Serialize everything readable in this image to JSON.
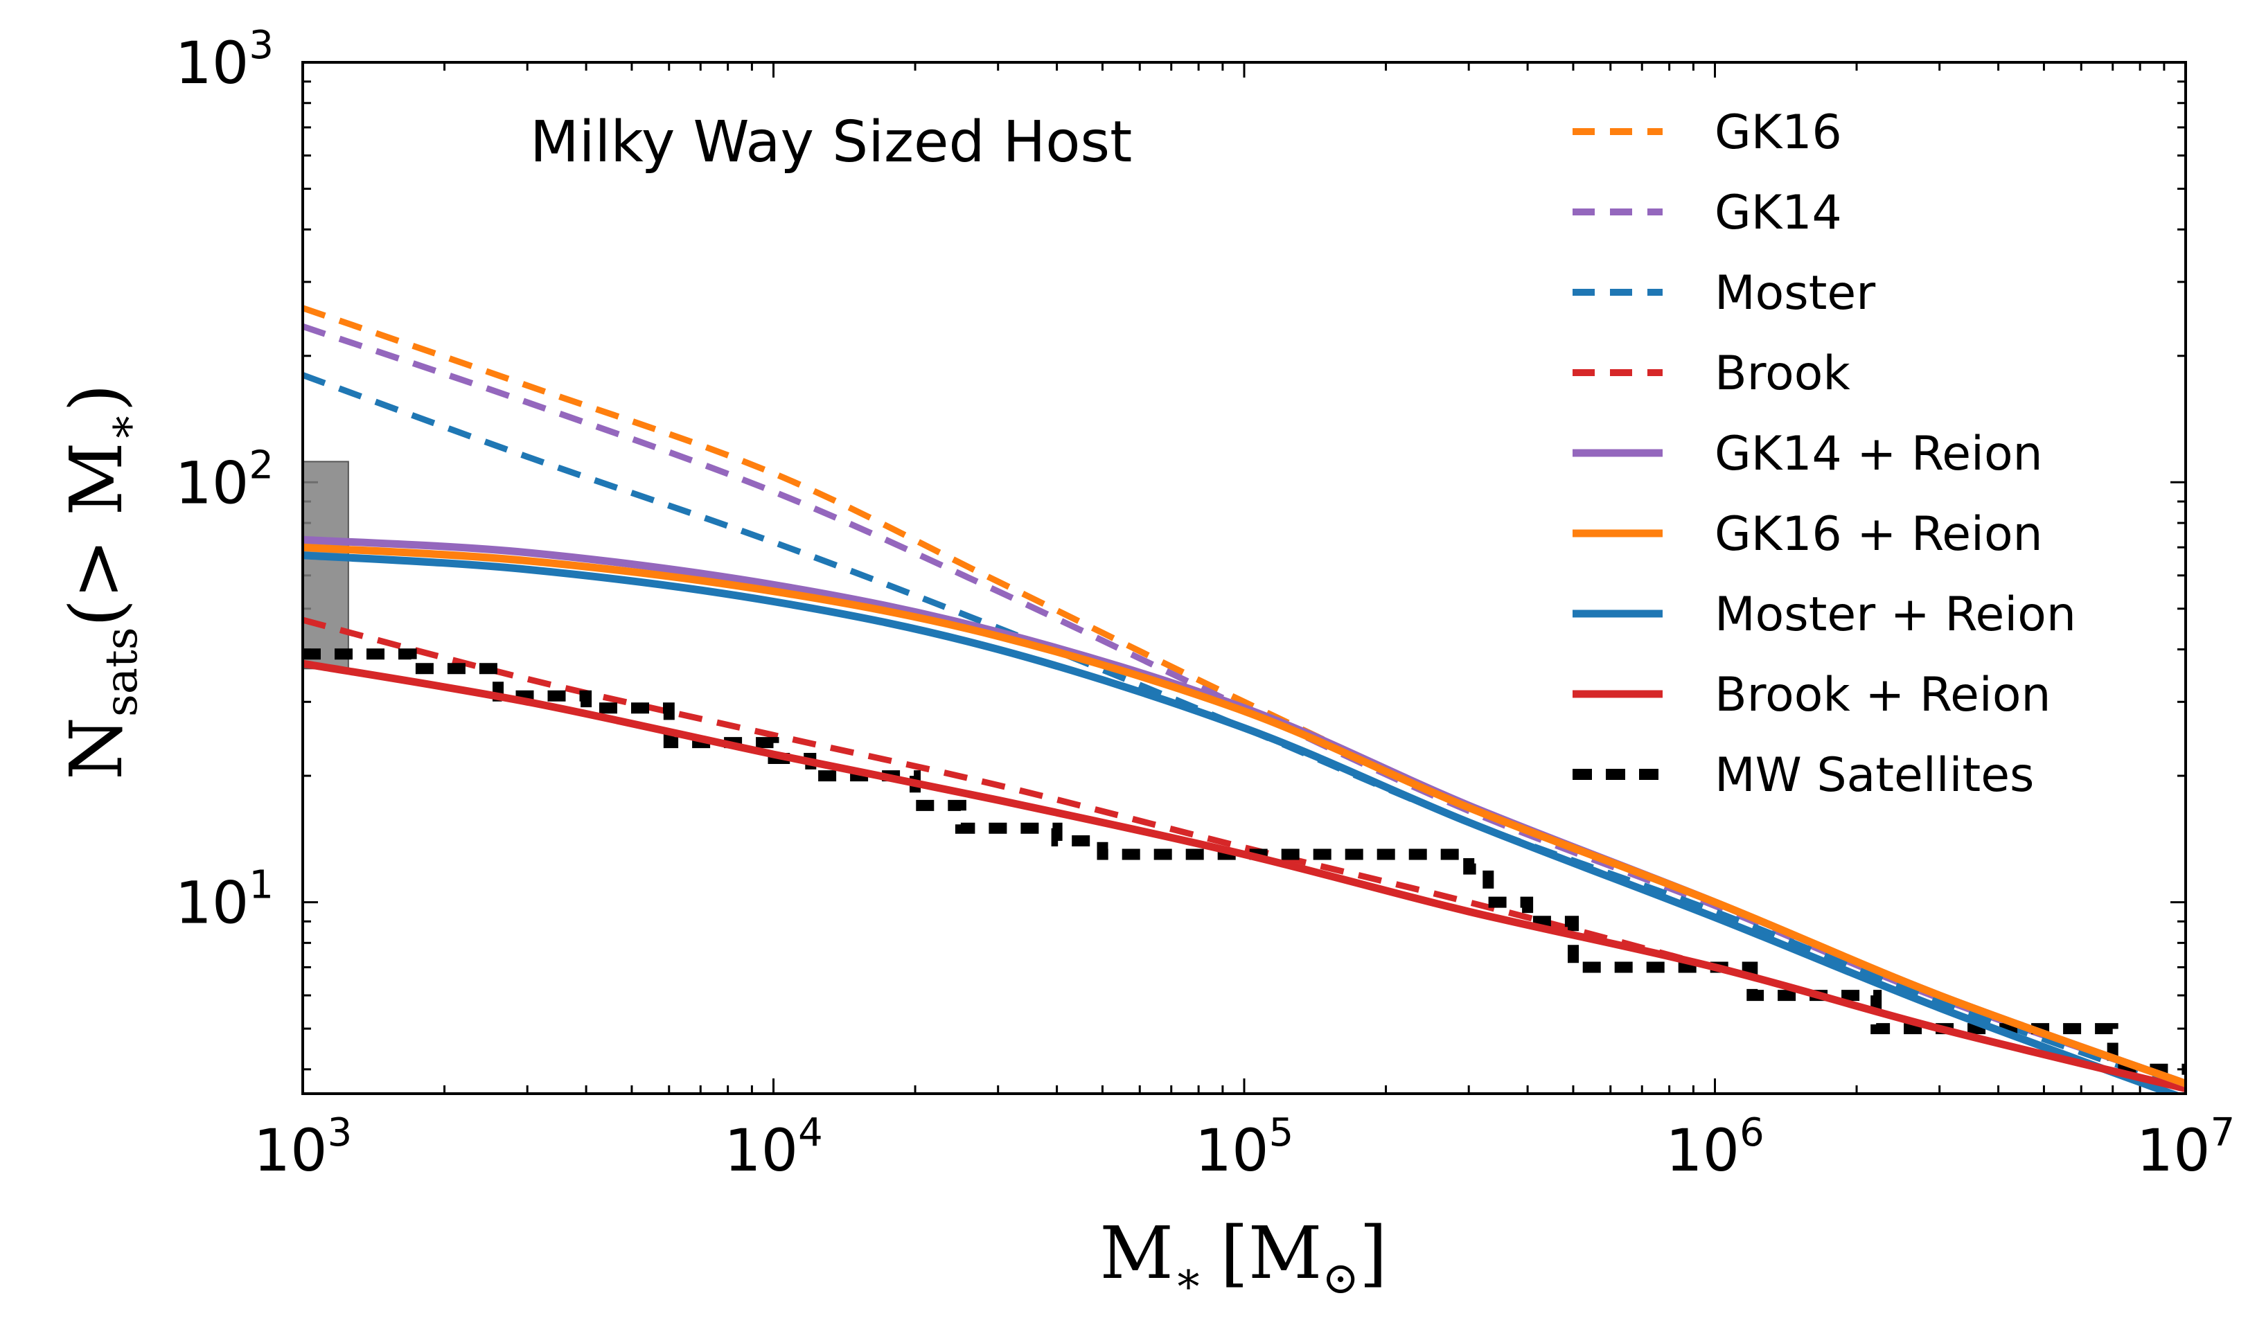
{
  "chart_data": {
    "type": "line",
    "title": "Milky Way Sized Host",
    "xscale": "log",
    "yscale": "log",
    "xlim": [
      1000,
      10000000
    ],
    "ylim": [
      3.5,
      1000
    ],
    "xlabel": {
      "main": "M",
      "sub": "∗",
      "unit_open": "[M",
      "unit_sub": "⊙",
      "unit_close": "]"
    },
    "ylabel": {
      "main": "N",
      "sub": "sats",
      "rest": "(> M",
      "rest_sub": "∗",
      "close": ")"
    },
    "xticks": [
      {
        "value": 1000,
        "base": "10",
        "exp": "3"
      },
      {
        "value": 10000,
        "base": "10",
        "exp": "4"
      },
      {
        "value": 100000,
        "base": "10",
        "exp": "5"
      },
      {
        "value": 1000000,
        "base": "10",
        "exp": "6"
      },
      {
        "value": 10000000,
        "base": "10",
        "exp": "7"
      }
    ],
    "yticks": [
      {
        "value": 10,
        "base": "10",
        "exp": "1"
      },
      {
        "value": 100,
        "base": "10",
        "exp": "2"
      },
      {
        "value": 1000,
        "base": "10",
        "exp": "3"
      }
    ],
    "legend_position": "top-right",
    "series": [
      {
        "name": "GK16",
        "style": "dashed",
        "color": "#ff7f0e",
        "x": [
          1000,
          3000,
          10000,
          30000,
          100000,
          300000,
          1000000,
          3000000,
          10000000
        ],
        "y": [
          260,
          170,
          105,
          58,
          30,
          17,
          10,
          6,
          3.7
        ]
      },
      {
        "name": "GK14",
        "style": "dashed",
        "color": "#9467bd",
        "x": [
          1000,
          3000,
          10000,
          30000,
          100000,
          300000,
          1000000,
          3000000,
          10000000
        ],
        "y": [
          235,
          155,
          95,
          55,
          29,
          16.5,
          9.8,
          5.9,
          3.7
        ]
      },
      {
        "name": "Moster",
        "style": "dashed",
        "color": "#1f77b4",
        "x": [
          1000,
          3000,
          10000,
          30000,
          100000,
          300000,
          1000000,
          3000000,
          10000000
        ],
        "y": [
          180,
          115,
          72,
          45,
          26,
          15.5,
          9.5,
          5.8,
          3.6
        ]
      },
      {
        "name": "Brook",
        "style": "dashed",
        "color": "#d62728",
        "x": [
          1000,
          3000,
          10000,
          30000,
          100000,
          300000,
          1000000,
          3000000,
          10000000
        ],
        "y": [
          47,
          34,
          25,
          19,
          13.5,
          10,
          7,
          5,
          3.6
        ]
      },
      {
        "name": "GK14 + Reion",
        "style": "solid",
        "color": "#9467bd",
        "x": [
          1000,
          3000,
          10000,
          30000,
          100000,
          300000,
          1000000,
          3000000,
          10000000
        ],
        "y": [
          73,
          68,
          57,
          44,
          29,
          17,
          10,
          6,
          3.7
        ]
      },
      {
        "name": "GK16 + Reion",
        "style": "solid",
        "color": "#ff7f0e",
        "x": [
          1000,
          3000,
          10000,
          30000,
          100000,
          300000,
          1000000,
          3000000,
          10000000
        ],
        "y": [
          70,
          65,
          55,
          43,
          28.5,
          16.8,
          10,
          6,
          3.7
        ]
      },
      {
        "name": "Moster + Reion",
        "style": "solid",
        "color": "#1f77b4",
        "x": [
          1000,
          3000,
          10000,
          30000,
          100000,
          300000,
          1000000,
          3000000,
          10000000
        ],
        "y": [
          67,
          62,
          52,
          40,
          26,
          15.5,
          9.2,
          5.6,
          3.4
        ]
      },
      {
        "name": "Brook + Reion",
        "style": "solid",
        "color": "#d62728",
        "x": [
          1000,
          3000,
          10000,
          30000,
          100000,
          300000,
          1000000,
          3000000,
          10000000
        ],
        "y": [
          37,
          30,
          22.5,
          17.5,
          13,
          9.5,
          7,
          5,
          3.6
        ]
      },
      {
        "name": "MW Satellites",
        "style": "dashed-thick",
        "color": "#000000",
        "x": [
          1000,
          1300,
          1700,
          2200,
          2600,
          3000,
          4000,
          5000,
          6000,
          8000,
          10000,
          12000,
          15000,
          20000,
          25000,
          30000,
          40000,
          50000,
          60000,
          75000,
          100000,
          130000,
          170000,
          220000,
          300000,
          330000,
          400000,
          480000,
          500000,
          600000,
          800000,
          1000000,
          1200000,
          1500000,
          2000000,
          2200000,
          3000000,
          4000000,
          5000000,
          6000000,
          7000000,
          8000000,
          10000000
        ],
        "y": [
          39,
          39,
          36,
          36,
          31,
          31,
          29,
          29,
          24,
          24,
          22,
          20,
          20,
          17,
          15,
          15,
          14,
          13,
          13,
          13,
          13,
          13,
          13,
          13,
          12,
          10,
          9,
          9,
          7,
          7,
          7,
          7,
          6,
          6,
          6,
          5,
          5,
          5,
          5,
          5,
          4,
          4,
          4
        ]
      }
    ],
    "annotations": [
      {
        "type": "shaded_box",
        "x": [
          1000,
          1250
        ],
        "y": [
          36,
          112
        ],
        "color": "#808080"
      }
    ]
  }
}
